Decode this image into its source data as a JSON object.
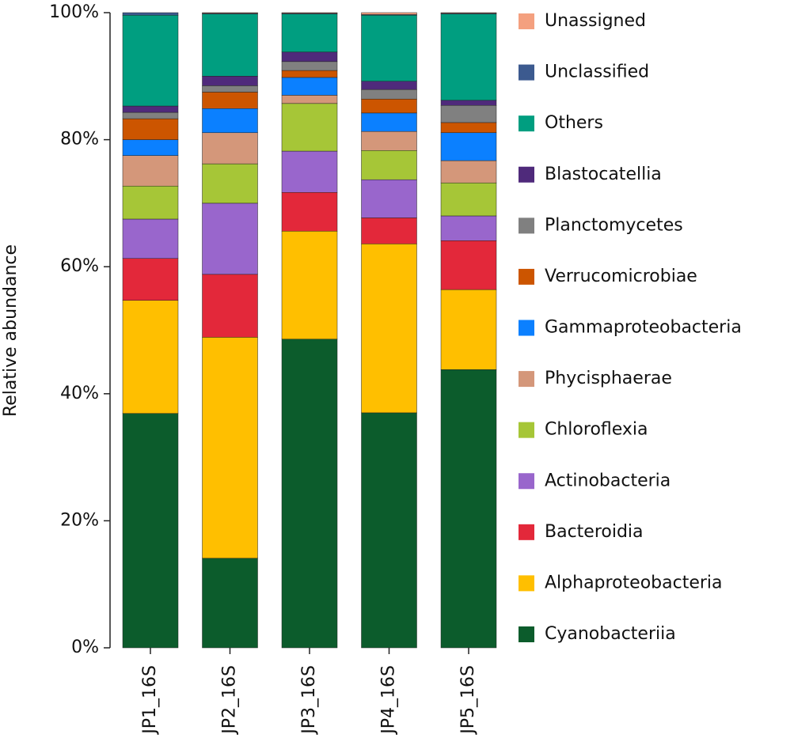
{
  "chart_data": {
    "type": "stacked_bar",
    "ylabel": "Relative abundance",
    "categories": [
      "JP1_16S",
      "JP2_16S",
      "JP3_16S",
      "JP4_16S",
      "JP5_16S"
    ],
    "ylim": [
      0,
      100
    ],
    "yticks": [
      {
        "value": 0,
        "label": "0%"
      },
      {
        "value": 20,
        "label": "20%"
      },
      {
        "value": 40,
        "label": "40%"
      },
      {
        "value": 60,
        "label": "60%"
      },
      {
        "value": 80,
        "label": "80%"
      },
      {
        "value": 100,
        "label": "100%"
      }
    ],
    "series": [
      {
        "name": "Cyanobacteriia",
        "color": "#0c5c2c",
        "values": [
          36.9,
          14.1,
          48.6,
          37.0,
          43.8
        ]
      },
      {
        "name": "Alphaproteobacteria",
        "color": "#ffbf00",
        "values": [
          17.8,
          34.8,
          17.0,
          26.6,
          12.6
        ]
      },
      {
        "name": "Bacteroidia",
        "color": "#e3283a",
        "values": [
          6.6,
          9.9,
          6.1,
          4.1,
          7.7
        ]
      },
      {
        "name": "Actinobacteria",
        "color": "#9966cc",
        "values": [
          6.2,
          11.2,
          6.5,
          6.0,
          3.9
        ]
      },
      {
        "name": "Chloroflexia",
        "color": "#a6c637",
        "values": [
          5.2,
          6.2,
          7.5,
          4.6,
          5.2
        ]
      },
      {
        "name": "Phycisphaerae",
        "color": "#d4977a",
        "values": [
          4.8,
          4.9,
          1.3,
          3.0,
          3.5
        ]
      },
      {
        "name": "Gammaproteobacteria",
        "color": "#0b80ff",
        "values": [
          2.5,
          3.8,
          2.8,
          2.9,
          4.4
        ]
      },
      {
        "name": "Verrucomicrobiae",
        "color": "#cc5500",
        "values": [
          3.3,
          2.6,
          1.1,
          2.2,
          1.6
        ]
      },
      {
        "name": "Planctomycetes",
        "color": "#808080",
        "values": [
          1.0,
          1.0,
          1.4,
          1.5,
          2.7
        ]
      },
      {
        "name": "Blastocatellia",
        "color": "#4f2a7b",
        "values": [
          1.0,
          1.5,
          1.5,
          1.3,
          0.8
        ]
      },
      {
        "name": "Others",
        "color": "#009e80",
        "values": [
          14.3,
          9.8,
          6.0,
          10.4,
          13.6
        ]
      },
      {
        "name": "Unclassified",
        "color": "#3c5a8f",
        "values": [
          0.4,
          0.1,
          0.1,
          0.1,
          0.1
        ]
      },
      {
        "name": "Unassigned",
        "color": "#f4a07f",
        "values": [
          0.0,
          0.1,
          0.1,
          0.3,
          0.1
        ]
      }
    ]
  }
}
